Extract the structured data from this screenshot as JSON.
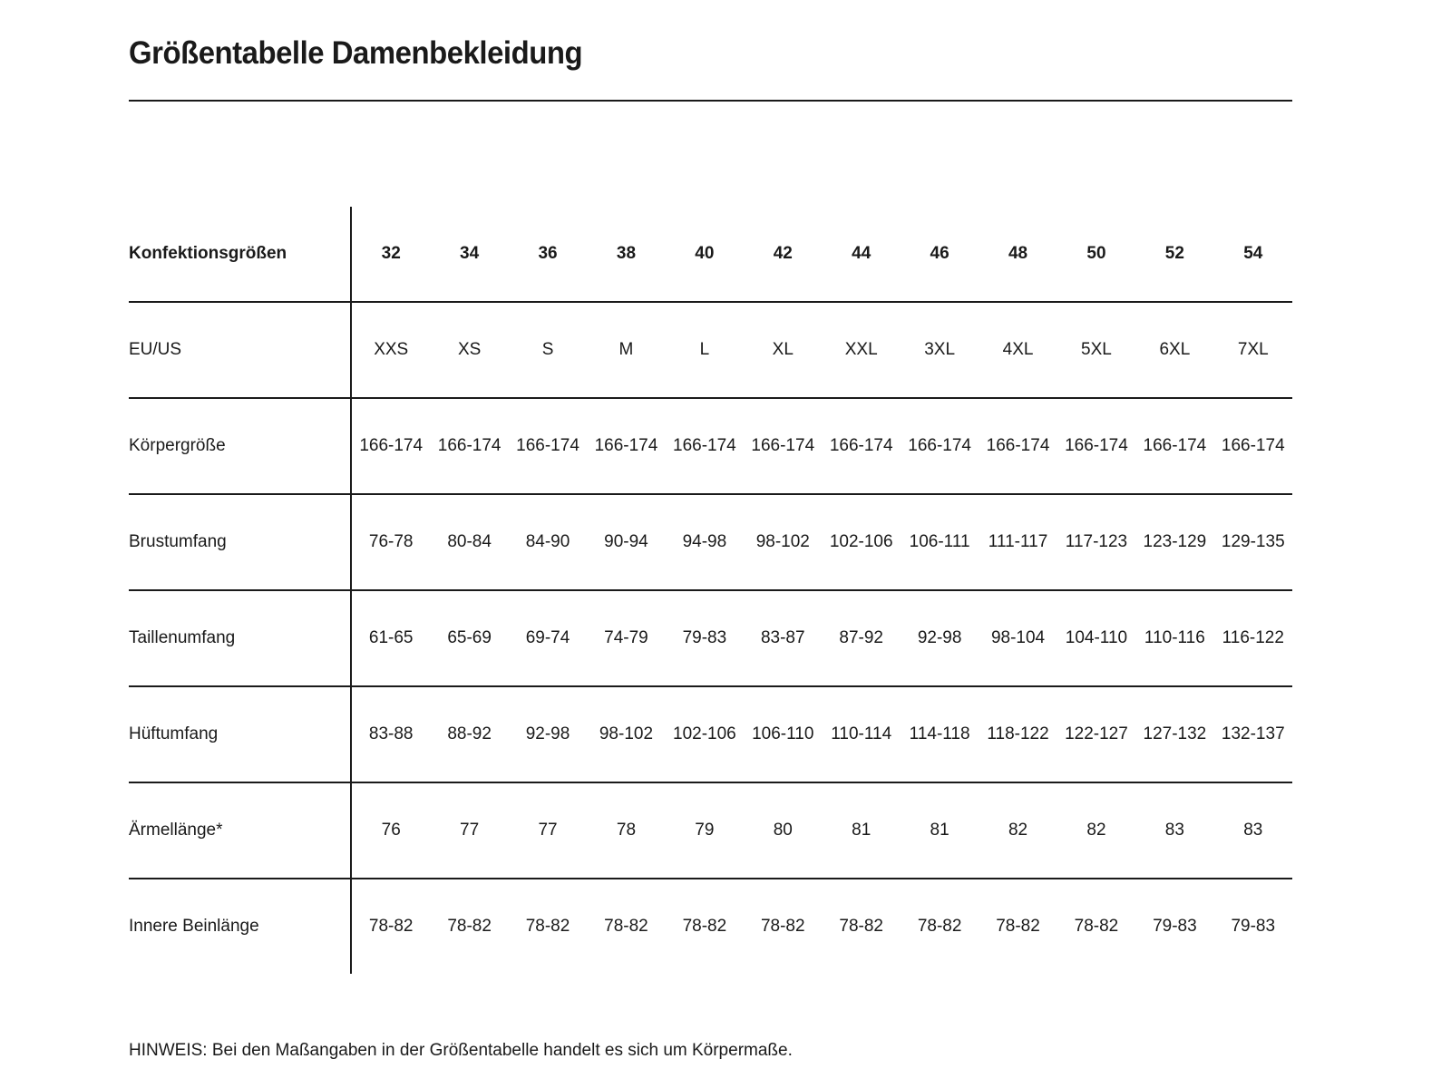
{
  "page": {
    "title": "Größentabelle Damenbekleidung",
    "note": "HINWEIS: Bei den Maßangaben in der Größentabelle handelt es sich um Körpermaße."
  },
  "table": {
    "header": {
      "label": "Konfektionsgrößen",
      "sizes": [
        "32",
        "34",
        "36",
        "38",
        "40",
        "42",
        "44",
        "46",
        "48",
        "50",
        "52",
        "54"
      ]
    },
    "rows": [
      {
        "label": "EU/US",
        "values": [
          "XXS",
          "XS",
          "S",
          "M",
          "L",
          "XL",
          "XXL",
          "3XL",
          "4XL",
          "5XL",
          "6XL",
          "7XL"
        ]
      },
      {
        "label": "Körpergröße",
        "values": [
          "166-174",
          "166-174",
          "166-174",
          "166-174",
          "166-174",
          "166-174",
          "166-174",
          "166-174",
          "166-174",
          "166-174",
          "166-174",
          "166-174"
        ]
      },
      {
        "label": "Brustumfang",
        "values": [
          "76-78",
          "80-84",
          "84-90",
          "90-94",
          "94-98",
          "98-102",
          "102-106",
          "106-111",
          "111-117",
          "117-123",
          "123-129",
          "129-135"
        ]
      },
      {
        "label": "Taillenumfang",
        "values": [
          "61-65",
          "65-69",
          "69-74",
          "74-79",
          "79-83",
          "83-87",
          "87-92",
          "92-98",
          "98-104",
          "104-110",
          "110-116",
          "116-122"
        ]
      },
      {
        "label": "Hüftumfang",
        "values": [
          "83-88",
          "88-92",
          "92-98",
          "98-102",
          "102-106",
          "106-110",
          "110-114",
          "114-118",
          "118-122",
          "122-127",
          "127-132",
          "132-137"
        ]
      },
      {
        "label": "Ärmellänge*",
        "values": [
          "76",
          "77",
          "77",
          "78",
          "79",
          "80",
          "81",
          "81",
          "82",
          "82",
          "83",
          "83"
        ]
      },
      {
        "label": "Innere Beinlänge",
        "values": [
          "78-82",
          "78-82",
          "78-82",
          "78-82",
          "78-82",
          "78-82",
          "78-82",
          "78-82",
          "78-82",
          "78-82",
          "79-83",
          "79-83"
        ]
      }
    ]
  }
}
